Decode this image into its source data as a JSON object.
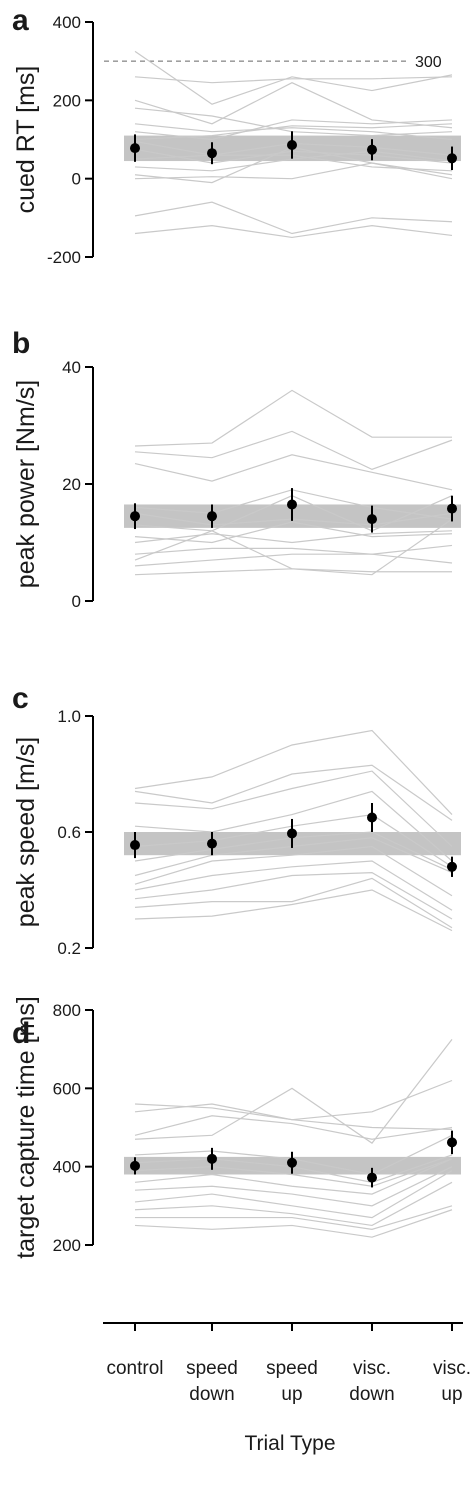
{
  "figure": {
    "x_axis_label": "Trial Type",
    "x_tick_labels": [
      [
        "control"
      ],
      [
        "speed",
        "down"
      ],
      [
        "speed",
        "up"
      ],
      [
        "visc.",
        "down"
      ],
      [
        "visc.",
        "up"
      ]
    ]
  },
  "chart_data": [
    {
      "panel": "a",
      "type": "line",
      "ylabel": "cued RT [ms]",
      "ylim": [
        -200,
        400
      ],
      "yticks": [
        400,
        200,
        0,
        -200
      ],
      "ytick_labels": [
        "400",
        "200",
        "0",
        "-200"
      ],
      "reference_line": {
        "y": 300,
        "label": "300"
      },
      "band": [
        45,
        110
      ],
      "categories": [
        "control",
        "speed down",
        "speed up",
        "visc. down",
        "visc. up"
      ],
      "mean": {
        "values": [
          78,
          65,
          86,
          74,
          52
        ],
        "err": [
          35,
          28,
          35,
          27,
          30
        ]
      },
      "subjects": [
        [
          325,
          190,
          260,
          225,
          265
        ],
        [
          260,
          245,
          255,
          255,
          260
        ],
        [
          200,
          140,
          245,
          150,
          130
        ],
        [
          180,
          160,
          120,
          110,
          120
        ],
        [
          140,
          120,
          130,
          120,
          100
        ],
        [
          120,
          100,
          150,
          140,
          150
        ],
        [
          100,
          110,
          135,
          130,
          140
        ],
        [
          95,
          60,
          90,
          80,
          60
        ],
        [
          75,
          40,
          70,
          60,
          40
        ],
        [
          50,
          60,
          60,
          30,
          20
        ],
        [
          30,
          20,
          50,
          70,
          45
        ],
        [
          10,
          -10,
          80,
          40,
          0
        ],
        [
          0,
          5,
          0,
          40,
          10
        ],
        [
          -95,
          -60,
          -140,
          -100,
          -110
        ],
        [
          -140,
          -120,
          -150,
          -120,
          -145
        ]
      ]
    },
    {
      "panel": "b",
      "type": "line",
      "ylabel": "peak power [Nm/s]",
      "ylim": [
        0,
        40
      ],
      "yticks": [
        40,
        20,
        0
      ],
      "ytick_labels": [
        "40",
        "20",
        "0"
      ],
      "band": [
        12.5,
        16.5
      ],
      "categories": [
        "control",
        "speed down",
        "speed up",
        "visc. down",
        "visc. up"
      ],
      "mean": {
        "values": [
          14.5,
          14.5,
          16.5,
          14,
          15.8
        ],
        "err": [
          2.2,
          2,
          2.8,
          2.3,
          2.2
        ]
      },
      "subjects": [
        [
          26.5,
          27,
          36,
          28,
          28
        ],
        [
          25.5,
          24.5,
          29,
          22.5,
          27.5
        ],
        [
          23.5,
          20.5,
          25,
          22,
          19
        ],
        [
          16,
          15,
          19,
          16,
          14
        ],
        [
          15,
          13,
          14,
          13,
          15
        ],
        [
          13,
          12,
          18,
          12,
          18
        ],
        [
          11,
          10,
          13.5,
          11,
          11.5
        ],
        [
          10,
          11.5,
          10,
          11.5,
          12
        ],
        [
          8,
          9,
          9,
          8,
          9.5
        ],
        [
          7,
          12,
          5.5,
          4.5,
          14
        ],
        [
          6,
          7,
          8,
          8,
          6.5
        ],
        [
          4.5,
          5,
          5.5,
          5,
          5
        ]
      ]
    },
    {
      "panel": "c",
      "type": "line",
      "ylabel": "peak speed [m/s]",
      "ylim": [
        0.2,
        1.0
      ],
      "yticks": [
        1.0,
        0.6,
        0.2
      ],
      "ytick_labels": [
        "1.0",
        "0.6",
        "0.2"
      ],
      "band": [
        0.52,
        0.6
      ],
      "categories": [
        "control",
        "speed down",
        "speed up",
        "visc. down",
        "visc. up"
      ],
      "mean": {
        "values": [
          0.555,
          0.56,
          0.595,
          0.65,
          0.48
        ],
        "err": [
          0.045,
          0.04,
          0.05,
          0.05,
          0.035
        ]
      },
      "subjects": [
        [
          0.75,
          0.79,
          0.9,
          0.95,
          0.66
        ],
        [
          0.74,
          0.7,
          0.8,
          0.83,
          0.64
        ],
        [
          0.7,
          0.68,
          0.75,
          0.81,
          0.55
        ],
        [
          0.62,
          0.6,
          0.66,
          0.74,
          0.5
        ],
        [
          0.55,
          0.57,
          0.62,
          0.66,
          0.48
        ],
        [
          0.5,
          0.54,
          0.58,
          0.6,
          0.47
        ],
        [
          0.45,
          0.52,
          0.55,
          0.58,
          0.46
        ],
        [
          0.42,
          0.5,
          0.52,
          0.55,
          0.38
        ],
        [
          0.4,
          0.45,
          0.48,
          0.5,
          0.33
        ],
        [
          0.37,
          0.4,
          0.45,
          0.46,
          0.3
        ],
        [
          0.34,
          0.36,
          0.36,
          0.44,
          0.27
        ],
        [
          0.3,
          0.31,
          0.35,
          0.4,
          0.26
        ]
      ]
    },
    {
      "panel": "d",
      "type": "line",
      "ylabel": "target capture time [ms]",
      "ylim": [
        200,
        800
      ],
      "yticks": [
        800,
        600,
        400,
        200
      ],
      "ytick_labels": [
        "800",
        "600",
        "400",
        "200"
      ],
      "band": [
        380,
        425
      ],
      "categories": [
        "control",
        "speed down",
        "speed up",
        "visc. down",
        "visc. up"
      ],
      "mean": {
        "values": [
          402,
          420,
          410,
          372,
          462
        ],
        "err": [
          22,
          28,
          28,
          25,
          30
        ]
      },
      "subjects": [
        [
          560,
          550,
          520,
          540,
          620
        ],
        [
          540,
          560,
          520,
          500,
          495
        ],
        [
          480,
          530,
          510,
          470,
          500
        ],
        [
          470,
          480,
          600,
          460,
          725
        ],
        [
          430,
          440,
          420,
          380,
          480
        ],
        [
          410,
          420,
          400,
          360,
          430
        ],
        [
          390,
          400,
          380,
          350,
          420
        ],
        [
          360,
          380,
          350,
          330,
          420
        ],
        [
          340,
          350,
          330,
          300,
          400
        ],
        [
          310,
          330,
          300,
          270,
          390
        ],
        [
          290,
          300,
          280,
          250,
          360
        ],
        [
          270,
          270,
          270,
          240,
          300
        ],
        [
          250,
          240,
          250,
          220,
          290
        ]
      ]
    }
  ]
}
